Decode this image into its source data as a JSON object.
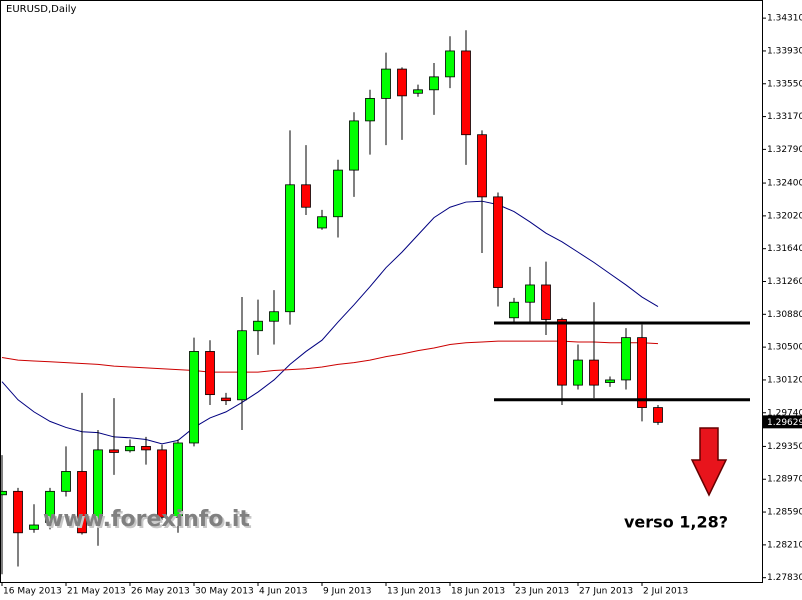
{
  "chart_data": {
    "type": "candlestick",
    "title": "EURUSD,Daily",
    "categories": [
      "16 May 2013",
      null,
      null,
      null,
      "21 May 2013",
      null,
      null,
      null,
      "26 May 2013",
      null,
      null,
      null,
      "30 May 2013",
      null,
      null,
      null,
      "4 Jun 2013",
      null,
      null,
      null,
      "9 Jun 2013",
      null,
      null,
      null,
      "13 Jun 2013",
      null,
      null,
      null,
      "18 Jun 2013",
      null,
      null,
      null,
      "23 Jun 2013",
      null,
      null,
      null,
      "27 Jun 2013",
      null,
      null,
      null,
      "2 Jul 2013",
      null
    ],
    "open": [
      1.2879,
      1.2883,
      1.2839,
      1.2847,
      1.2883,
      1.2906,
      1.285,
      1.2931,
      1.293,
      1.2935,
      1.2931,
      1.2853,
      1.2939,
      1.3045,
      1.2991,
      1.2989,
      1.3069,
      1.308,
      1.3091,
      1.3238,
      1.3188,
      1.3201,
      1.3255,
      1.3312,
      1.3338,
      1.3372,
      1.3344,
      1.3348,
      1.3363,
      1.3393,
      1.3296,
      1.3224,
      1.3084,
      1.3102,
      1.3122,
      1.3082,
      1.3006,
      1.3035,
      1.3009,
      1.3012,
      1.3061,
      1.298
    ],
    "high": [
      1.2925,
      1.2887,
      1.2868,
      1.2887,
      1.2935,
      1.2997,
      1.2954,
      1.2991,
      1.2943,
      1.2946,
      1.2937,
      1.2943,
      1.3061,
      1.3058,
      1.2997,
      1.3108,
      1.3105,
      1.3116,
      1.3301,
      1.3284,
      1.3209,
      1.3267,
      1.3322,
      1.3348,
      1.3391,
      1.3374,
      1.3354,
      1.3379,
      1.341,
      1.3417,
      1.3301,
      1.3229,
      1.3107,
      1.3143,
      1.3149,
      1.3084,
      1.3053,
      1.3102,
      1.3016,
      1.3072,
      1.3076,
      1.2983
    ],
    "low": [
      1.2787,
      1.2796,
      1.2835,
      1.2839,
      1.2877,
      1.2833,
      1.282,
      1.2902,
      1.2928,
      1.2914,
      1.285,
      1.2835,
      1.2935,
      1.2983,
      1.2983,
      1.2954,
      1.3041,
      1.3053,
      1.3076,
      1.3203,
      1.3186,
      1.3177,
      1.3224,
      1.3273,
      1.3284,
      1.329,
      1.334,
      1.3319,
      1.335,
      1.3261,
      1.3159,
      1.3097,
      1.3079,
      1.3078,
      1.3064,
      1.2983,
      1.3001,
      1.2991,
      1.3004,
      1.3001,
      1.2964,
      1.296
    ],
    "close": [
      1.2883,
      1.2835,
      1.2844,
      1.2883,
      1.2906,
      1.2835,
      1.2931,
      1.2928,
      1.2935,
      1.2931,
      1.2853,
      1.2939,
      1.3045,
      1.2995,
      1.2988,
      1.3069,
      1.308,
      1.3091,
      1.3238,
      1.3212,
      1.3201,
      1.3255,
      1.3312,
      1.3338,
      1.3372,
      1.3341,
      1.3348,
      1.3363,
      1.3393,
      1.3296,
      1.3224,
      1.3119,
      1.3102,
      1.3122,
      1.3082,
      1.3006,
      1.3035,
      1.3006,
      1.3012,
      1.3061,
      1.298,
      1.29629
    ],
    "up_color": "#00ff00",
    "down_color": "#ff0000",
    "moving_averages": [
      {
        "color": "#000080",
        "values": [
          1.301,
          1.2989,
          1.2975,
          1.2964,
          1.2957,
          1.2952,
          1.2951,
          1.2946,
          1.2945,
          1.2943,
          1.2938,
          1.2942,
          1.2957,
          1.2968,
          1.2975,
          1.2986,
          1.2998,
          1.3012,
          1.303,
          1.3045,
          1.3058,
          1.3079,
          1.3099,
          1.312,
          1.3142,
          1.316,
          1.318,
          1.32,
          1.3212,
          1.3218,
          1.3219,
          1.3215,
          1.3207,
          1.3195,
          1.3182,
          1.3172,
          1.316,
          1.3148,
          1.3135,
          1.3122,
          1.3108,
          1.3097
        ]
      },
      {
        "color": "#cc0000",
        "values": [
          1.3038,
          1.3035,
          1.3034,
          1.3033,
          1.3032,
          1.3031,
          1.303,
          1.3028,
          1.3027,
          1.3026,
          1.3025,
          1.3024,
          1.3023,
          1.3021,
          1.3021,
          1.3021,
          1.3021,
          1.3023,
          1.3024,
          1.3025,
          1.3027,
          1.303,
          1.3032,
          1.3035,
          1.3039,
          1.3042,
          1.3046,
          1.3049,
          1.3053,
          1.3055,
          1.3056,
          1.3057,
          1.3057,
          1.3057,
          1.3057,
          1.3057,
          1.3056,
          1.3056,
          1.3055,
          1.3055,
          1.3055,
          1.3054
        ]
      }
    ],
    "levels": [
      1.3078,
      1.2989
    ],
    "last_price": 1.29629,
    "ylim": [
      1.2778,
      1.3452
    ],
    "yticks": [
      {
        "value": 1.3431,
        "label": "1.34310"
      },
      {
        "value": 1.3393,
        "label": "1.33930"
      },
      {
        "value": 1.3355,
        "label": "1.33550"
      },
      {
        "value": 1.3317,
        "label": "1.33170"
      },
      {
        "value": 1.3279,
        "label": "1.32790"
      },
      {
        "value": 1.324,
        "label": "1.32400"
      },
      {
        "value": 1.3202,
        "label": "1.32020"
      },
      {
        "value": 1.3164,
        "label": "1.31640"
      },
      {
        "value": 1.3126,
        "label": "1.31260"
      },
      {
        "value": 1.3088,
        "label": "1.30880"
      },
      {
        "value": 1.305,
        "label": "1.30500"
      },
      {
        "value": 1.3012,
        "label": "1.30120"
      },
      {
        "value": 1.2974,
        "label": "1.29740"
      },
      {
        "value": 1.2935,
        "label": "1.29350"
      },
      {
        "value": 1.2897,
        "label": "1.28970"
      },
      {
        "value": 1.2859,
        "label": "1.28590"
      },
      {
        "value": 1.2821,
        "label": "1.28210"
      },
      {
        "value": 1.2783,
        "label": "1.27830"
      }
    ],
    "watermark": "www.forexinfo.it",
    "annotation": "verso 1,28?"
  }
}
